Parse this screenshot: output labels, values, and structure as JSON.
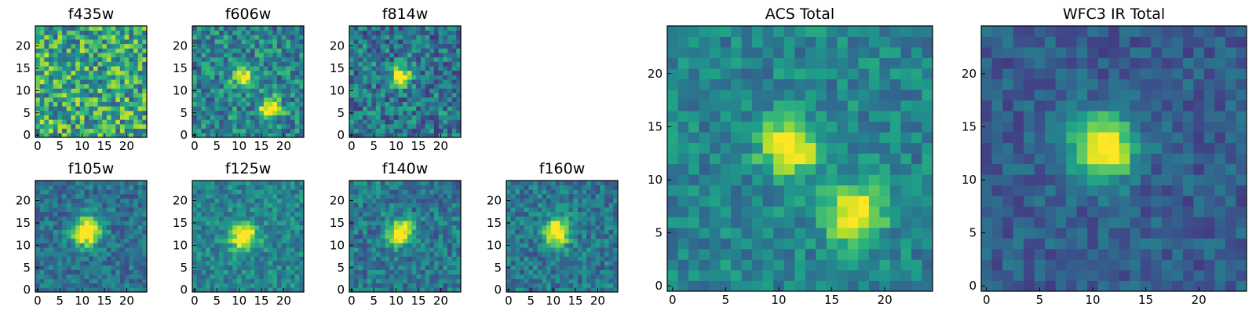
{
  "chart_data": [
    {
      "type": "heatmap",
      "title": "f435w",
      "xticks": [
        "0",
        "5",
        "10",
        "15",
        "20"
      ],
      "yticks": [
        "0",
        "5",
        "10",
        "15",
        "20"
      ],
      "xlim": [
        -0.5,
        24.5
      ],
      "ylim": [
        -0.5,
        24.5
      ],
      "grid": false,
      "colormap": "viridis",
      "peaks": []
    },
    {
      "type": "heatmap",
      "title": "f606w",
      "xticks": [
        "0",
        "5",
        "10",
        "15",
        "20"
      ],
      "yticks": [
        "0",
        "5",
        "10",
        "15",
        "20"
      ],
      "xlim": [
        -0.5,
        24.5
      ],
      "ylim": [
        -0.5,
        24.5
      ],
      "grid": false,
      "colormap": "viridis",
      "peaks": [
        {
          "x": 11,
          "y": 13
        },
        {
          "x": 17,
          "y": 6
        }
      ]
    },
    {
      "type": "heatmap",
      "title": "f814w",
      "xticks": [
        "0",
        "5",
        "10",
        "15",
        "20"
      ],
      "yticks": [
        "0",
        "5",
        "10",
        "15",
        "20"
      ],
      "xlim": [
        -0.5,
        24.5
      ],
      "ylim": [
        -0.5,
        24.5
      ],
      "grid": false,
      "colormap": "viridis",
      "peaks": [
        {
          "x": 11,
          "y": 13
        }
      ]
    },
    {
      "type": "heatmap",
      "title": "f105w",
      "xticks": [
        "0",
        "5",
        "10",
        "15",
        "20"
      ],
      "yticks": [
        "0",
        "5",
        "10",
        "15",
        "20"
      ],
      "xlim": [
        -0.5,
        24.5
      ],
      "ylim": [
        -0.5,
        24.5
      ],
      "grid": false,
      "colormap": "viridis",
      "peaks": [
        {
          "x": 11,
          "y": 13
        }
      ]
    },
    {
      "type": "heatmap",
      "title": "f125w",
      "xticks": [
        "0",
        "5",
        "10",
        "15",
        "20"
      ],
      "yticks": [
        "0",
        "5",
        "10",
        "15",
        "20"
      ],
      "xlim": [
        -0.5,
        24.5
      ],
      "ylim": [
        -0.5,
        24.5
      ],
      "grid": false,
      "colormap": "viridis",
      "peaks": [
        {
          "x": 11,
          "y": 12
        }
      ]
    },
    {
      "type": "heatmap",
      "title": "f140w",
      "xticks": [
        "0",
        "5",
        "10",
        "15",
        "20"
      ],
      "yticks": [
        "0",
        "5",
        "10",
        "15",
        "20"
      ],
      "xlim": [
        -0.5,
        24.5
      ],
      "ylim": [
        -0.5,
        24.5
      ],
      "grid": false,
      "colormap": "viridis",
      "peaks": [
        {
          "x": 11,
          "y": 13
        }
      ]
    },
    {
      "type": "heatmap",
      "title": "f160w",
      "xticks": [
        "0",
        "5",
        "10",
        "15",
        "20"
      ],
      "yticks": [
        "0",
        "5",
        "10",
        "15",
        "20"
      ],
      "xlim": [
        -0.5,
        24.5
      ],
      "ylim": [
        -0.5,
        24.5
      ],
      "grid": false,
      "colormap": "viridis",
      "peaks": [
        {
          "x": 11,
          "y": 13
        }
      ]
    },
    {
      "type": "heatmap",
      "title": "ACS Total",
      "xticks": [
        "0",
        "5",
        "10",
        "15",
        "20"
      ],
      "yticks": [
        "0",
        "5",
        "10",
        "15",
        "20"
      ],
      "xlim": [
        -0.5,
        24.5
      ],
      "ylim": [
        -0.5,
        24.5
      ],
      "grid": false,
      "colormap": "viridis",
      "peaks": [
        {
          "x": 11,
          "y": 13
        },
        {
          "x": 17,
          "y": 7
        }
      ]
    },
    {
      "type": "heatmap",
      "title": "WFC3 IR Total",
      "xticks": [
        "0",
        "5",
        "10",
        "15",
        "20"
      ],
      "yticks": [
        "0",
        "5",
        "10",
        "15",
        "20"
      ],
      "xlim": [
        -0.5,
        24.5
      ],
      "ylim": [
        -0.5,
        24.5
      ],
      "grid": false,
      "colormap": "viridis",
      "peaks": [
        {
          "x": 11,
          "y": 13
        }
      ]
    }
  ]
}
